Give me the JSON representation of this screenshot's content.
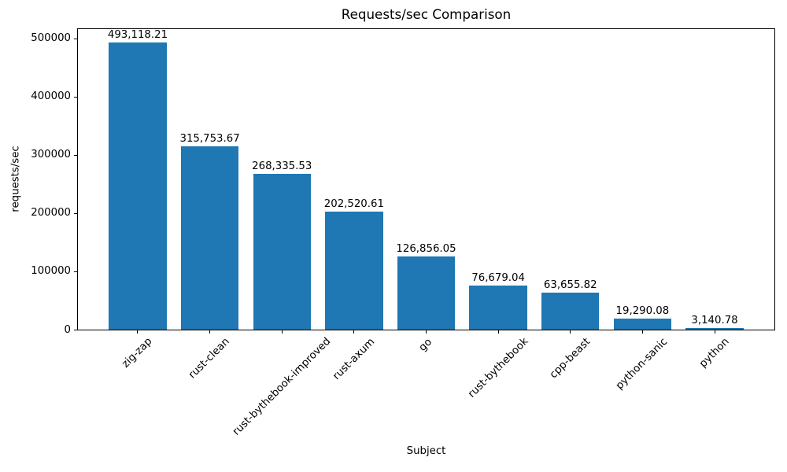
{
  "chart_data": {
    "type": "bar",
    "title": "Requests/sec Comparison",
    "xlabel": "Subject",
    "ylabel": "requests/sec",
    "categories": [
      "zig-zap",
      "rust-clean",
      "rust-bythebook-improved",
      "rust-axum",
      "go",
      "rust-bythebook",
      "cpp-beast",
      "python-sanic",
      "python"
    ],
    "values": [
      493118.21,
      315753.67,
      268335.53,
      202520.61,
      126856.05,
      76679.04,
      63655.82,
      19290.08,
      3140.78
    ],
    "value_labels": [
      "493,118.21",
      "315,753.67",
      "268,335.53",
      "202,520.61",
      "126,856.05",
      "76,679.04",
      "63,655.82",
      "19,290.08",
      "3,140.78"
    ],
    "y_ticks": [
      0,
      100000,
      200000,
      300000,
      400000,
      500000
    ],
    "y_tick_labels": [
      "0",
      "100000",
      "200000",
      "300000",
      "400000",
      "500000"
    ],
    "ylim": [
      0,
      517774
    ],
    "bar_color": "#1f77b4",
    "grid": false,
    "legend": "none",
    "x_tick_rotation_deg": 45
  }
}
